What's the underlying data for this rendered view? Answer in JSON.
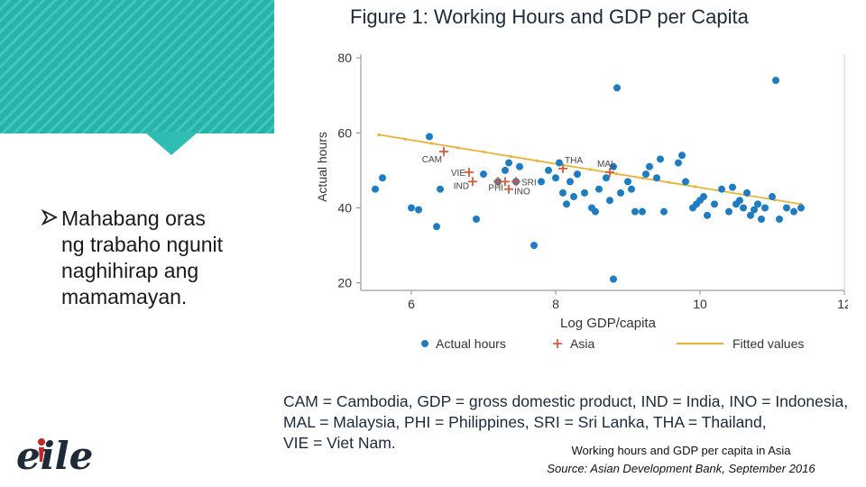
{
  "slide": {
    "bullet_lines": [
      "Mahabang oras",
      "ng trabaho ngunit",
      "naghihirap ang",
      "mamamayan."
    ],
    "logo_text": "eile",
    "legend_codes_lines": [
      "CAM = Cambodia, GDP = gross domestic product, IND = India, INO = Indonesia,",
      "MAL = Malaysia, PHI = Philippines, SRI = Sri Lanka, THA = Thailand,",
      "VIE = Viet Nam."
    ],
    "caption_title": "Working hours and GDP per capita in Asia",
    "caption_source": "Source: Asian Development Bank, September 2016",
    "colors": {
      "teal": "#27b3aa",
      "dot": "#1f7cc0",
      "asia": "#d45a3a",
      "fit": "#e8b23a",
      "title": "#1c2a3a"
    },
    "icons": [
      "arrow-bullet-icon"
    ]
  },
  "chart_data": {
    "type": "scatter",
    "title": "Figure 1: Working Hours and GDP per Capita",
    "xlabel": "Log GDP/capita",
    "ylabel": "Actual hours",
    "xlim": [
      5.3,
      12
    ],
    "ylim": [
      18,
      81
    ],
    "x_ticks": [
      6,
      8,
      10,
      12
    ],
    "y_ticks": [
      20,
      40,
      60,
      80
    ],
    "grid": false,
    "legend_position": "bottom",
    "legend": [
      "Actual hours",
      "Asia",
      "Fitted values"
    ],
    "series": [
      {
        "name": "Actual hours",
        "marker": "dot",
        "points": [
          [
            5.5,
            45
          ],
          [
            5.6,
            48
          ],
          [
            6.0,
            40
          ],
          [
            6.1,
            39.5
          ],
          [
            6.25,
            59
          ],
          [
            6.35,
            35
          ],
          [
            6.4,
            45
          ],
          [
            6.9,
            37
          ],
          [
            7.0,
            49
          ],
          [
            7.2,
            47
          ],
          [
            7.3,
            50
          ],
          [
            7.35,
            52
          ],
          [
            7.45,
            47
          ],
          [
            7.5,
            51
          ],
          [
            7.7,
            30
          ],
          [
            7.8,
            47
          ],
          [
            7.9,
            50
          ],
          [
            8.0,
            48
          ],
          [
            8.05,
            52
          ],
          [
            8.1,
            44
          ],
          [
            8.15,
            41
          ],
          [
            8.2,
            47
          ],
          [
            8.25,
            43
          ],
          [
            8.3,
            49
          ],
          [
            8.4,
            44
          ],
          [
            8.5,
            40
          ],
          [
            8.55,
            39
          ],
          [
            8.6,
            45
          ],
          [
            8.7,
            48
          ],
          [
            8.75,
            42
          ],
          [
            8.8,
            51
          ],
          [
            8.85,
            72
          ],
          [
            8.9,
            44
          ],
          [
            9.0,
            47
          ],
          [
            9.05,
            45
          ],
          [
            9.1,
            39
          ],
          [
            9.2,
            39
          ],
          [
            9.25,
            49
          ],
          [
            9.3,
            51
          ],
          [
            9.4,
            48
          ],
          [
            9.45,
            53
          ],
          [
            9.5,
            39
          ],
          [
            9.7,
            52
          ],
          [
            9.75,
            54
          ],
          [
            9.8,
            47
          ],
          [
            9.9,
            40
          ],
          [
            9.95,
            41
          ],
          [
            10.0,
            42
          ],
          [
            10.05,
            43
          ],
          [
            10.1,
            38
          ],
          [
            10.2,
            41
          ],
          [
            10.3,
            45
          ],
          [
            10.4,
            39
          ],
          [
            10.5,
            41
          ],
          [
            10.55,
            42
          ],
          [
            10.6,
            40
          ],
          [
            10.7,
            38
          ],
          [
            10.8,
            41
          ],
          [
            10.85,
            37
          ],
          [
            10.9,
            40
          ],
          [
            11.0,
            43
          ],
          [
            11.05,
            74
          ],
          [
            11.1,
            37
          ],
          [
            11.2,
            40
          ],
          [
            11.3,
            39
          ],
          [
            11.4,
            40
          ],
          [
            8.8,
            21
          ],
          [
            10.45,
            45.5
          ],
          [
            10.65,
            44
          ],
          [
            10.75,
            39.5
          ]
        ]
      },
      {
        "name": "Asia",
        "marker": "plus",
        "points": [
          [
            6.45,
            55
          ],
          [
            6.8,
            49.5
          ],
          [
            6.85,
            47
          ],
          [
            7.2,
            47
          ],
          [
            7.3,
            47
          ],
          [
            7.35,
            45
          ],
          [
            7.45,
            47
          ],
          [
            8.1,
            50.5
          ],
          [
            8.75,
            49.5
          ]
        ],
        "labels": [
          {
            "text": "CAM",
            "at": [
              6.45,
              55
            ]
          },
          {
            "text": "VIE",
            "at": [
              6.8,
              49.5
            ]
          },
          {
            "text": "IND",
            "at": [
              6.85,
              47
            ]
          },
          {
            "text": "PHI",
            "at": [
              7.3,
              47
            ]
          },
          {
            "text": "INO",
            "at": [
              7.45,
              47
            ]
          },
          {
            "text": "SRI",
            "at": [
              7.45,
              47
            ]
          },
          {
            "text": "THA",
            "at": [
              8.1,
              50.5
            ]
          },
          {
            "text": "MAL",
            "at": [
              8.75,
              49.5
            ]
          }
        ]
      },
      {
        "name": "Fitted values",
        "marker": "line",
        "points": [
          [
            5.55,
            59.5
          ],
          [
            11.4,
            41
          ]
        ]
      }
    ]
  }
}
